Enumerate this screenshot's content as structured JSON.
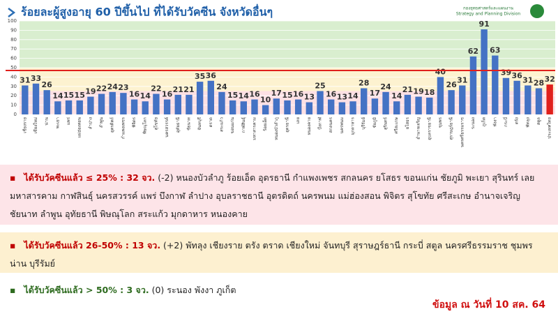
{
  "header": {
    "title": "ร้อยละผู้สูงอายุ 60 ปีขึ้นไป ที่ได้รับวัคซีน จังหวัดอื่นๆ",
    "org_th": "กองยุทธศาสตร์และแผนงาน",
    "org_en": "Strategy and Planning Division"
  },
  "chart_data": {
    "type": "bar",
    "categories": [
      "เชียงราย",
      "เชียงใหม่",
      "น่าน",
      "พะเยา",
      "แพร่",
      "แม่ฮ่องสอน",
      "ลำปาง",
      "ลำพูน",
      "อุตรดิตถ์",
      "กำแพงเพชร",
      "พิจิตร",
      "พิษณุโลก",
      "สุโขทัย",
      "นครสวรรค์",
      "อุทัยธานี",
      "ชัยนาท",
      "จันทบุรี",
      "ตราด",
      "สระแก้ว",
      "ขอนแก่น",
      "กาฬสินธุ์",
      "มหาสารคาม",
      "ร้อยเอ็ด",
      "หนองบัวลำภู",
      "อุดรธานี",
      "เลย",
      "หนองคาย",
      "บึงกาฬ",
      "สกลนคร",
      "นครพนม",
      "มุกดาหาร",
      "บุรีรัมย์",
      "ชัยภูมิ",
      "สุรินทร์",
      "ศรีสะเกษ",
      "ยโสธร",
      "อำนาจเจริญ",
      "อุบลราชธานี",
      "ชุมพร",
      "สุราษฎร์ธานี",
      "นครศรีธรรมราช",
      "ระนอง",
      "ภูเก็ต",
      "พังงา",
      "กระบี่",
      "ตรัง",
      "พัทลุง",
      "สตูล",
      "ประเทศไทย"
    ],
    "values": [
      31,
      33,
      26,
      14,
      15,
      15,
      19,
      22,
      24,
      23,
      16,
      14,
      22,
      16,
      21,
      21,
      35,
      36,
      24,
      15,
      14,
      16,
      10,
      17,
      15,
      16,
      13,
      25,
      16,
      13,
      14,
      28,
      17,
      24,
      14,
      21,
      19,
      18,
      40,
      26,
      31,
      62,
      91,
      63,
      39,
      36,
      31,
      28,
      32
    ],
    "colors": {
      "bar": "#4472c4",
      "highlight": "#e0201c"
    },
    "highlight_index": 48,
    "ylim": [
      0,
      100
    ],
    "yticks": [
      0,
      10,
      20,
      30,
      40,
      50,
      60,
      70,
      80,
      90,
      100
    ],
    "grid": true,
    "bands": [
      {
        "from": 0,
        "to": 25,
        "color": "#fde0e4"
      },
      {
        "from": 25,
        "to": 50,
        "color": "#fdf2d0"
      },
      {
        "from": 50,
        "to": 100,
        "color": "#d9eecf"
      }
    ],
    "reference_line": {
      "value": 47,
      "color": "#e0201c"
    }
  },
  "groups": [
    {
      "heading": "ได้รับวัคซีนแล้ว ≤ 25% : 32 จว.",
      "change": "(-2)",
      "provinces": "หนองบัวลำภู ร้อยเอ็ด อุดรธานี กำแพงเพชร สกลนคร ยโสธร ขอนแก่น ชัยภูมิ พะเยา สุรินทร์ เลย มหาสารคาม กาฬสินธุ์ นครสวรรค์ แพร่ บึงกาฬ ลำปาง อุบลราชธานี อุตรดิตถ์ นครพนม แม่ฮ่องสอน พิจิตร สุโขทัย ศรีสะเกษ อำนาจเจริญ ชัยนาท ลำพูน อุทัยธานี พิษณุโลก สระแก้ว มุกดาหาร หนองคาย",
      "color": "#c00000",
      "bg": "#fde4e8"
    },
    {
      "heading": "ได้รับวัคซีนแล้ว 26-50% : 13 จว.",
      "change": "(+2)",
      "provinces": "พัทลุง เชียงราย ตรัง ตราด เชียงใหม่ จันทบุรี สุราษฎร์ธานี กระบี่ สตูล นครศรีธรรมราช ชุมพร น่าน บุรีรัมย์",
      "color": "#c00000",
      "bg": "#fdf0d0"
    },
    {
      "heading": "ได้รับวัคซีนแล้ว > 50% : 3 จว.",
      "change": "(0)",
      "provinces": "ระนอง พังงา ภูเก็ต",
      "color": "#2e6b1f",
      "bg": "#ffffff"
    }
  ],
  "footer": "ข้อมูล ณ วันที่ 10 สค. 64"
}
